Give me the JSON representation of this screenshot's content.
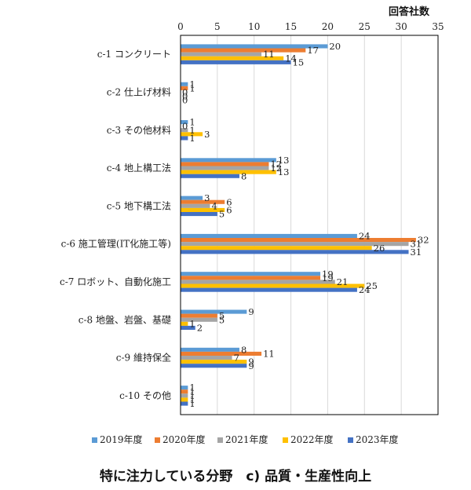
{
  "chart_data": {
    "type": "bar",
    "orientation": "horizontal",
    "unit_label": "回答社数",
    "xlim": [
      0,
      35
    ],
    "xticks": [
      0,
      5,
      10,
      15,
      20,
      25,
      30,
      35
    ],
    "grid": true,
    "legend_position": "bottom",
    "categories": [
      "c-1 コンクリート",
      "c-2 仕上げ材料",
      "c-3 その他材料",
      "c-4 地上構工法",
      "c-5 地下構工法",
      "c-6 施工管理(IT化施工等)",
      "c-7 ロボット、自動化施工",
      "c-8 地盤、岩盤、基礎",
      "c-9 維持保全",
      "c-10 その他"
    ],
    "series": [
      {
        "name": "2019年度",
        "color": "#5b9bd5",
        "values": [
          20,
          1,
          1,
          13,
          3,
          24,
          19,
          9,
          8,
          1
        ]
      },
      {
        "name": "2020年度",
        "color": "#ed7d31",
        "values": [
          17,
          1,
          0,
          12,
          6,
          32,
          19,
          5,
          11,
          1
        ]
      },
      {
        "name": "2021年度",
        "color": "#a5a5a5",
        "values": [
          11,
          0,
          1,
          12,
          4,
          31,
          21,
          5,
          7,
          1
        ]
      },
      {
        "name": "2022年度",
        "color": "#ffc000",
        "values": [
          14,
          0,
          3,
          13,
          6,
          26,
          25,
          1,
          9,
          1
        ]
      },
      {
        "name": "2023年度",
        "color": "#4472c4",
        "values": [
          15,
          0,
          1,
          8,
          5,
          31,
          24,
          2,
          9,
          1
        ]
      }
    ]
  },
  "caption": "特に注力している分野　c) 品質・生産性向上"
}
